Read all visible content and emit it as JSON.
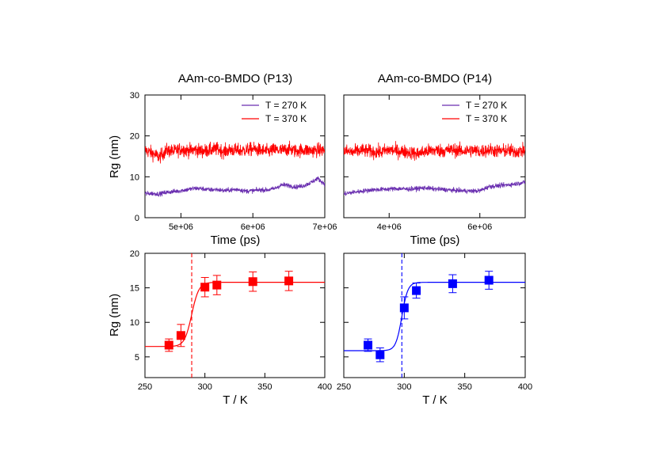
{
  "chart_data": [
    {
      "type": "line",
      "title": "AAm-co-BMDO (P13)",
      "xlabel": "Time (ps)",
      "ylabel": "Rg (nm)",
      "xlim": [
        4500000,
        7000000
      ],
      "ylim": [
        0,
        30
      ],
      "xticks": [
        5000000,
        6000000,
        7000000
      ],
      "xtick_labels": [
        "5e+06",
        "6e+06",
        "7e+06"
      ],
      "yticks": [
        0,
        10,
        20,
        30
      ],
      "ytick_labels": [
        "0",
        "10",
        "20",
        "30"
      ],
      "legend_position": "top-right",
      "series": [
        {
          "name": "T = 270 K",
          "color": "#6a2fb0",
          "x": [
            4500000,
            4600000,
            4700000,
            4800000,
            4900000,
            5000000,
            5100000,
            5200000,
            5300000,
            5400000,
            5500000,
            5600000,
            5700000,
            5800000,
            5900000,
            6000000,
            6100000,
            6200000,
            6300000,
            6400000,
            6500000,
            6600000,
            6700000,
            6800000,
            6900000,
            7000000
          ],
          "y": [
            5.9,
            5.9,
            5.8,
            6.2,
            6.4,
            6.6,
            6.9,
            7.2,
            7.1,
            6.8,
            6.9,
            6.6,
            6.8,
            6.9,
            6.5,
            6.6,
            6.8,
            6.8,
            7.1,
            8.0,
            7.9,
            7.5,
            7.8,
            8.5,
            9.6,
            8.2
          ],
          "noise": 0.55
        },
        {
          "name": "T = 370 K",
          "color": "#ff0000",
          "x": [
            4500000,
            4600000,
            4700000,
            4800000,
            4900000,
            5000000,
            5100000,
            5200000,
            5300000,
            5400000,
            5500000,
            5600000,
            5700000,
            5800000,
            5900000,
            6000000,
            6100000,
            6200000,
            6300000,
            6400000,
            6500000,
            6600000,
            6700000,
            6800000,
            6900000,
            7000000
          ],
          "y": [
            16.5,
            15.8,
            14.8,
            16.5,
            16.2,
            16.8,
            16.4,
            16.6,
            16.3,
            16.5,
            16.8,
            16.2,
            16.6,
            16.4,
            16.5,
            16.8,
            16.5,
            16.2,
            16.6,
            16.4,
            16.8,
            16.3,
            16.6,
            16.4,
            16.5,
            16.5
          ],
          "noise": 1.6
        }
      ]
    },
    {
      "type": "line",
      "title": "AAm-co-BMDO (P14)",
      "xlabel": "Time (ps)",
      "ylabel": "",
      "xlim": [
        3000000,
        7000000
      ],
      "ylim": [
        0,
        30
      ],
      "xticks": [
        4000000,
        6000000
      ],
      "xtick_labels": [
        "4e+06",
        "6e+06"
      ],
      "yticks": [
        0,
        10,
        20,
        30
      ],
      "legend_position": "top-right",
      "series": [
        {
          "name": "T = 270 K",
          "color": "#6a2fb0",
          "x": [
            3000000,
            3200000,
            3400000,
            3600000,
            3800000,
            4000000,
            4200000,
            4400000,
            4600000,
            4800000,
            5000000,
            5200000,
            5400000,
            5600000,
            5800000,
            6000000,
            6200000,
            6400000,
            6600000,
            6800000,
            7000000
          ],
          "y": [
            5.8,
            6.2,
            6.5,
            6.8,
            6.9,
            7.0,
            7.1,
            7.0,
            7.1,
            7.3,
            7.0,
            6.9,
            6.7,
            6.6,
            6.5,
            6.6,
            7.6,
            7.8,
            8.0,
            8.3,
            8.7
          ],
          "noise": 0.55
        },
        {
          "name": "T = 370 K",
          "color": "#ff0000",
          "x": [
            3000000,
            3200000,
            3400000,
            3600000,
            3800000,
            4000000,
            4200000,
            4400000,
            4600000,
            4800000,
            5000000,
            5200000,
            5400000,
            5600000,
            5800000,
            6000000,
            6200000,
            6400000,
            6600000,
            6800000,
            7000000
          ],
          "y": [
            16.3,
            16.0,
            16.5,
            16.2,
            16.0,
            16.6,
            16.3,
            16.1,
            15.6,
            16.2,
            16.5,
            16.4,
            16.6,
            16.3,
            16.5,
            16.2,
            16.6,
            16.3,
            16.4,
            16.2,
            16.4
          ],
          "noise": 1.6
        }
      ]
    },
    {
      "type": "scatter",
      "title": "",
      "xlabel": "T / K",
      "ylabel": "Rg (nm)",
      "xlim": [
        250,
        400
      ],
      "ylim": [
        2,
        20
      ],
      "xticks": [
        250,
        300,
        350,
        400
      ],
      "xtick_labels": [
        "250",
        "300",
        "350",
        "400"
      ],
      "yticks": [
        5,
        10,
        15,
        20
      ],
      "ytick_labels": [
        "5",
        "10",
        "15",
        "20"
      ],
      "color": "#ff0000",
      "points": [
        {
          "x": 270,
          "y": 6.7,
          "err": 0.9
        },
        {
          "x": 280,
          "y": 8.1,
          "err": 1.6
        },
        {
          "x": 300,
          "y": 15.1,
          "err": 1.4
        },
        {
          "x": 310,
          "y": 15.4,
          "err": 1.4
        },
        {
          "x": 340,
          "y": 15.9,
          "err": 1.4
        },
        {
          "x": 370,
          "y": 16.0,
          "err": 1.4
        }
      ],
      "fit": {
        "low": 6.5,
        "high": 15.8,
        "midpoint": 289,
        "width": 3.0
      },
      "vline_x": 289
    },
    {
      "type": "scatter",
      "title": "",
      "xlabel": "T / K",
      "ylabel": "",
      "xlim": [
        250,
        400
      ],
      "ylim": [
        2,
        20
      ],
      "xticks": [
        250,
        300,
        350,
        400
      ],
      "xtick_labels": [
        "250",
        "300",
        "350",
        "400"
      ],
      "yticks": [
        5,
        10,
        15,
        20
      ],
      "color": "#0000ff",
      "points": [
        {
          "x": 270,
          "y": 6.7,
          "err": 0.9
        },
        {
          "x": 280,
          "y": 5.3,
          "err": 1.0
        },
        {
          "x": 300,
          "y": 12.1,
          "err": 1.6
        },
        {
          "x": 310,
          "y": 14.6,
          "err": 1.1
        },
        {
          "x": 340,
          "y": 15.6,
          "err": 1.3
        },
        {
          "x": 370,
          "y": 16.1,
          "err": 1.3
        }
      ],
      "fit": {
        "low": 5.9,
        "high": 15.8,
        "midpoint": 298,
        "width": 2.5
      },
      "vline_x": 298
    }
  ]
}
